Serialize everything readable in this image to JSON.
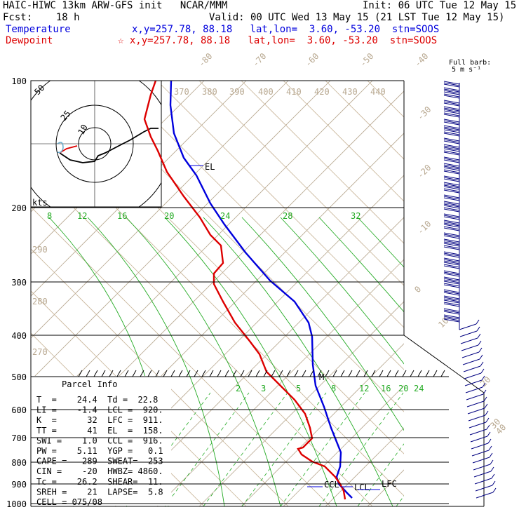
{
  "header": {
    "title": "HAIC-HIWC 13km ARW-GFS init   NCAR/MMM",
    "init": "Init: 06 UTC Tue 12 May 15",
    "fcst": "Fcst:    18 h",
    "valid": "Valid: 00 UTC Wed 13 May 15 (21 LST Tue 12 May 15)",
    "temp_label": "Temperature",
    "temp_loc": "x,y=257.78, 88.18   lat,lon=  3.60, -53.20  stn=SOOS",
    "dew_label": "Dewpoint",
    "dew_loc": "☆ x,y=257.78, 88.18   lat,lon=  3.60, -53.20  stn=SOOS"
  },
  "barb_title": "Full barb:",
  "barb_unit": "5 m s⁻¹",
  "hodograph": {
    "unit": "kts",
    "rings": [
      "10",
      "25",
      "50"
    ]
  },
  "chart_data": {
    "type": "line",
    "ylabel": "",
    "pressure_ticks": [
      100,
      200,
      300,
      400,
      500,
      600,
      700,
      800,
      900,
      1000
    ],
    "isotherm_labels": [
      "-80",
      "-70",
      "-60",
      "-50",
      "-40",
      "-30",
      "-20",
      "-10",
      "0",
      "10",
      "20",
      "30",
      "40"
    ],
    "theta_labels": [
      "370",
      "380",
      "390",
      "400",
      "410",
      "420",
      "430",
      "440"
    ],
    "theta_low_labels": [
      "290",
      "280",
      "270"
    ],
    "mixing_ratio_labels_upper": [
      "8",
      "12",
      "16",
      "20",
      "24",
      "28",
      "32"
    ],
    "mixing_ratio_labels_lower": [
      "2",
      "3",
      "5",
      "8",
      "12",
      "16",
      "20",
      "24"
    ],
    "series": [
      {
        "name": "Temperature",
        "color": "#0000dd",
        "points": [
          [
            244,
            115
          ],
          [
            243,
            150
          ],
          [
            248,
            190
          ],
          [
            262,
            225
          ],
          [
            280,
            250
          ],
          [
            300,
            290
          ],
          [
            320,
            320
          ],
          [
            350,
            360
          ],
          [
            385,
            400
          ],
          [
            420,
            430
          ],
          [
            440,
            460
          ],
          [
            445,
            480
          ],
          [
            446,
            520
          ],
          [
            450,
            550
          ],
          [
            462,
            580
          ],
          [
            472,
            610
          ],
          [
            480,
            630
          ],
          [
            486,
            645
          ],
          [
            485,
            665
          ],
          [
            480,
            680
          ],
          [
            483,
            690
          ],
          [
            495,
            703
          ],
          [
            502,
            710
          ]
        ]
      },
      {
        "name": "Dewpoint",
        "color": "#dd0000",
        "points": [
          [
            222,
            115
          ],
          [
            215,
            135
          ],
          [
            206,
            170
          ],
          [
            215,
            195
          ],
          [
            225,
            215
          ],
          [
            238,
            245
          ],
          [
            262,
            280
          ],
          [
            285,
            310
          ],
          [
            300,
            335
          ],
          [
            315,
            350
          ],
          [
            318,
            375
          ],
          [
            305,
            390
          ],
          [
            305,
            405
          ],
          [
            318,
            430
          ],
          [
            335,
            460
          ],
          [
            355,
            485
          ],
          [
            370,
            505
          ],
          [
            380,
            530
          ],
          [
            400,
            550
          ],
          [
            420,
            570
          ],
          [
            435,
            590
          ],
          [
            442,
            610
          ],
          [
            445,
            625
          ],
          [
            440,
            630
          ],
          [
            432,
            638
          ],
          [
            425,
            640
          ],
          [
            430,
            648
          ],
          [
            445,
            658
          ],
          [
            463,
            665
          ],
          [
            478,
            680
          ],
          [
            485,
            690
          ],
          [
            490,
            700
          ],
          [
            492,
            712
          ]
        ]
      }
    ],
    "parcel_markers": [
      {
        "label": "EL"
      },
      {
        "label": "M"
      },
      {
        "label": "CCL"
      },
      {
        "label": "LCL"
      },
      {
        "label": "LFC"
      }
    ]
  },
  "parcel_info": {
    "title": "Parcel Info",
    "rows": [
      "T  =    24.4  Td =  22.8",
      "LI =    -1.4  LCL =  920.",
      "K  =      32  LFC =  911.",
      "TT =      41  EL  =  158.",
      "SWI =    1.0  CCL =  916.",
      "PW =    5.11  YGP =   0.1",
      "CAPE =   289  SWEAT=  253",
      "CIN =    -20  HWBZ= 4860.",
      "Tc =    26.2  SHEAR=  11.",
      "SREH =    21  LAPSE=  5.8",
      "CELL = 075/08"
    ]
  }
}
